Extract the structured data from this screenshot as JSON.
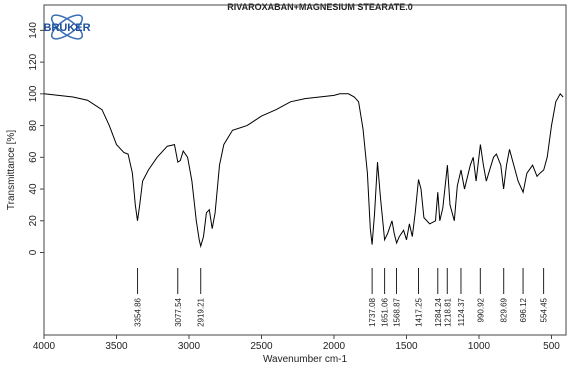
{
  "chart_data": {
    "type": "line",
    "title": "RIVAROXABAN+MAGNESIUM STEARATE.0",
    "logo": "BRUKER",
    "x_label": "Wavenumber cm-1",
    "y_label": "Transmittance [%]",
    "color": "#000000",
    "xlim": [
      4000,
      400
    ],
    "ylim": [
      -52,
      156
    ],
    "xticks": [
      4000,
      3500,
      3000,
      2500,
      2000,
      1500,
      1000,
      500
    ],
    "yticks": [
      0,
      20,
      40,
      60,
      80,
      100,
      120,
      140
    ],
    "x": [
      4000,
      3900,
      3800,
      3700,
      3600,
      3550,
      3500,
      3450,
      3420,
      3390,
      3370,
      3355,
      3340,
      3320,
      3280,
      3220,
      3150,
      3100,
      3077,
      3060,
      3040,
      3010,
      2980,
      2950,
      2930,
      2919,
      2900,
      2880,
      2860,
      2840,
      2820,
      2790,
      2760,
      2700,
      2600,
      2500,
      2400,
      2300,
      2200,
      2100,
      2000,
      1960,
      1900,
      1860,
      1830,
      1800,
      1770,
      1750,
      1737,
      1720,
      1700,
      1680,
      1651,
      1630,
      1600,
      1585,
      1568,
      1550,
      1520,
      1500,
      1480,
      1460,
      1440,
      1417,
      1400,
      1380,
      1340,
      1300,
      1284,
      1270,
      1250,
      1218,
      1200,
      1170,
      1150,
      1124,
      1100,
      1060,
      1040,
      1020,
      990,
      970,
      950,
      900,
      880,
      850,
      830,
      810,
      790,
      760,
      730,
      696,
      670,
      630,
      600,
      580,
      554,
      530,
      500,
      470,
      440,
      420
    ],
    "values": [
      100,
      99,
      98,
      96,
      90,
      80,
      68,
      63,
      62,
      50,
      30,
      20,
      30,
      45,
      52,
      60,
      67,
      68,
      57,
      58,
      64,
      60,
      45,
      20,
      8,
      4,
      10,
      25,
      27,
      15,
      25,
      55,
      68,
      77,
      80,
      86,
      90,
      95,
      97,
      98,
      99,
      100,
      100,
      98,
      95,
      78,
      50,
      15,
      5,
      25,
      57,
      35,
      8,
      12,
      20,
      12,
      6,
      10,
      14,
      8,
      18,
      10,
      25,
      46,
      40,
      22,
      18,
      20,
      38,
      20,
      28,
      55,
      30,
      20,
      42,
      52,
      40,
      55,
      60,
      45,
      68,
      55,
      45,
      60,
      62,
      55,
      40,
      55,
      65,
      55,
      45,
      38,
      50,
      55,
      48,
      50,
      52,
      60,
      80,
      95,
      100,
      98
    ],
    "peaks": [
      3354.86,
      3077.54,
      2919.21,
      1737.08,
      1651.06,
      1568.87,
      1417.25,
      1284.24,
      1218.81,
      1124.37,
      990.92,
      829.69,
      696.12,
      554.45
    ]
  }
}
